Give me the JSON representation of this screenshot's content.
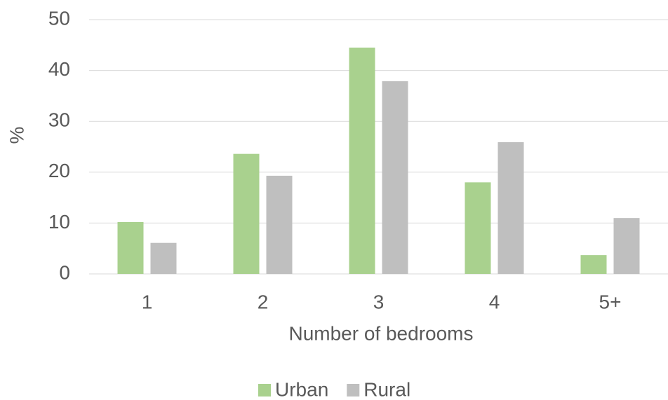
{
  "chart_data": {
    "type": "bar",
    "x_label": "Number of bedrooms",
    "y_label": "%",
    "categories": [
      "1",
      "2",
      "3",
      "4",
      "5+"
    ],
    "series": [
      {
        "name": "Urban",
        "color": "#a9d18e",
        "values": [
          10.2,
          23.6,
          44.5,
          18.0,
          3.7
        ]
      },
      {
        "name": "Rural",
        "color": "#bfbfbf",
        "values": [
          6.1,
          19.3,
          37.9,
          25.9,
          11.0
        ]
      }
    ],
    "ylim": [
      0,
      50
    ],
    "yticks": [
      0,
      10,
      20,
      30,
      40,
      50
    ],
    "grid": true,
    "legend": "bottom"
  }
}
